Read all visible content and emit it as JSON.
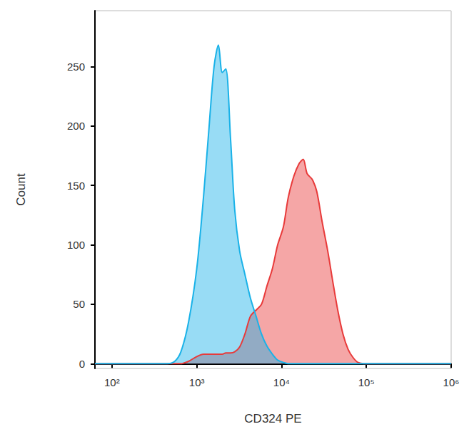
{
  "chart_data": {
    "type": "area",
    "x_label": "CD324 PE",
    "y_label": "Count",
    "log": "x",
    "grid": false,
    "xlim": [
      63,
      1000000
    ],
    "xticks": [
      {
        "value": 100,
        "label": "10²"
      },
      {
        "value": 1000,
        "label": "10³"
      },
      {
        "value": 10000,
        "label": "10⁴"
      },
      {
        "value": 100000,
        "label": "10⁵"
      },
      {
        "value": 1000000,
        "label": "10⁶"
      }
    ],
    "ylim": [
      -4,
      297
    ],
    "yticks": [
      0,
      50,
      100,
      150,
      200,
      250
    ],
    "x": [
      63,
      100,
      200,
      300,
      450,
      550,
      650,
      800,
      1000,
      1200,
      1400,
      1600,
      1800,
      2000,
      2200,
      2500,
      2800,
      3200,
      3700,
      4300,
      5000,
      5800,
      6700,
      7800,
      9000,
      10500,
      12000,
      14000,
      16000,
      18000,
      20000,
      23000,
      26000,
      30000,
      35000,
      40000,
      46000,
      53000,
      61000,
      70000,
      80000,
      95000,
      120000,
      200000,
      500000,
      1000000
    ],
    "series": [
      {
        "color": "#e83a3a",
        "values": [
          0,
          0,
          0,
          0,
          0,
          0,
          0,
          2,
          6,
          8,
          8,
          8,
          8,
          8,
          9,
          9,
          10,
          14,
          25,
          40,
          45,
          50,
          65,
          80,
          100,
          115,
          140,
          158,
          168,
          172,
          160,
          155,
          145,
          120,
          95,
          70,
          45,
          25,
          12,
          5,
          1,
          0,
          0,
          0,
          0,
          0
        ]
      },
      {
        "color": "#1ab2e8",
        "values": [
          0,
          0,
          0,
          0,
          0,
          2,
          10,
          35,
          80,
          140,
          200,
          250,
          268,
          245,
          248,
          190,
          130,
          95,
          75,
          55,
          40,
          25,
          15,
          8,
          3,
          1,
          0,
          0,
          0,
          0,
          0,
          0,
          0,
          0,
          0,
          0,
          0,
          0,
          0,
          0,
          0,
          0,
          0,
          0,
          0,
          0
        ]
      }
    ]
  }
}
